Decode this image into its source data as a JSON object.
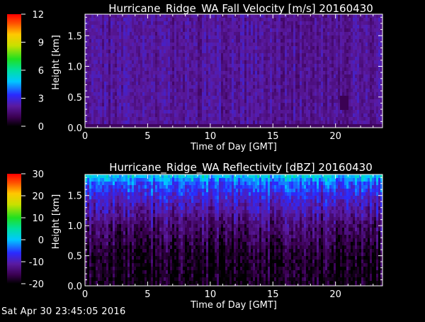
{
  "chart_data": [
    {
      "type": "heatmap",
      "title": "Hurricane_Ridge_WA Fall Velocity [m/s] 20160430",
      "xlabel": "Time of Day [GMT]",
      "ylabel": "Height [km]",
      "xlim": [
        0,
        23.75
      ],
      "ylim": [
        0,
        1.85
      ],
      "xticks": [
        0,
        5,
        10,
        15,
        20
      ],
      "yticks": [
        0.0,
        0.5,
        1.0,
        1.5
      ],
      "colorbar": {
        "min": 0,
        "max": 12,
        "ticks": [
          0,
          3,
          6,
          9,
          12
        ]
      },
      "field": {
        "dominant_value": 2,
        "range": [
          0.5,
          4
        ],
        "description": "uniform low fall velocity (~2 m/s) at all heights and times; weak purple patch near 20.5 GMT at 0.3-0.5 km"
      }
    },
    {
      "type": "heatmap",
      "title": "Hurricane_Ridge_WA Reflectivity [dBZ] 20160430",
      "xlabel": "Time of Day [GMT]",
      "ylabel": "Height [km]",
      "xlim": [
        0,
        23.75
      ],
      "ylim": [
        0,
        1.85
      ],
      "xticks": [
        0,
        5,
        10,
        15,
        20
      ],
      "yticks": [
        0.0,
        0.5,
        1.0,
        1.5
      ],
      "colorbar": {
        "min": -20,
        "max": 30,
        "ticks": [
          -20,
          -10,
          0,
          10,
          20,
          30
        ]
      },
      "field": {
        "profile": [
          {
            "height": 1.85,
            "value": 2
          },
          {
            "height": 1.7,
            "value": -4
          },
          {
            "height": 1.4,
            "value": -9
          },
          {
            "height": 1.0,
            "value": -14
          },
          {
            "height": 0.5,
            "value": -18
          },
          {
            "height": 0.0,
            "value": -19
          }
        ],
        "description": "reflectivity decreasing with depth: about 0 dBZ near 1.8 km, near -20 dBZ below 1 km, streaky in time"
      }
    }
  ],
  "footer": {
    "timestamp": "Sat Apr 30 23:45:05 2016"
  }
}
